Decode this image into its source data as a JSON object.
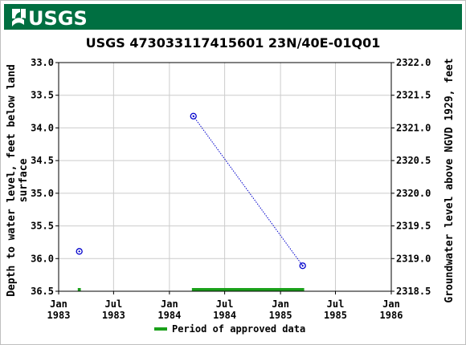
{
  "header": {
    "logo_text": "USGS",
    "bar_color": "#006f41"
  },
  "chart_data": {
    "type": "scatter",
    "title": "USGS 473033117415601 23N/40E-01Q01",
    "ylabel_left": "Depth to water level, feet below land surface",
    "ylabel_left_lines": [
      "Depth to water level, feet below land",
      "surface"
    ],
    "ylabel_right": "Groundwater level above NGVD 1929, feet",
    "x_ticks": [
      {
        "value": "1983-01-01",
        "line1": "Jan",
        "line2": "1983"
      },
      {
        "value": "1983-07-01",
        "line1": "Jul",
        "line2": "1983"
      },
      {
        "value": "1984-01-01",
        "line1": "Jan",
        "line2": "1984"
      },
      {
        "value": "1984-07-01",
        "line1": "Jul",
        "line2": "1984"
      },
      {
        "value": "1985-01-01",
        "line1": "Jan",
        "line2": "1985"
      },
      {
        "value": "1985-07-01",
        "line1": "Jul",
        "line2": "1985"
      },
      {
        "value": "1986-01-01",
        "line1": "Jan",
        "line2": "1986"
      }
    ],
    "xlim": [
      "1983-01-01",
      "1986-01-01"
    ],
    "ylim_left": [
      36.5,
      33.0
    ],
    "yticks_left": [
      "33.0",
      "33.5",
      "34.0",
      "34.5",
      "35.0",
      "35.5",
      "36.0",
      "36.5"
    ],
    "ylim_right": [
      2318.5,
      2322.0
    ],
    "yticks_right": [
      "2322.0",
      "2321.5",
      "2321.0",
      "2320.5",
      "2320.0",
      "2319.5",
      "2319.0",
      "2318.5"
    ],
    "grid": true,
    "series": [
      {
        "marker": "circle-open",
        "color": "#0000cc",
        "points": [
          {
            "x": "1983-03-10",
            "y": 35.89
          },
          {
            "x": "1984-03-20",
            "y": 33.82
          },
          {
            "x": "1985-03-15",
            "y": 36.11
          }
        ],
        "connected": [
          [
            1,
            2
          ]
        ],
        "line_style": "dotted"
      }
    ],
    "approved_periods": [
      {
        "start": "1983-03-05",
        "end": "1983-03-15"
      },
      {
        "start": "1984-03-15",
        "end": "1985-03-20"
      }
    ],
    "approved_color": "#1aa01a",
    "legend": {
      "label": "Period of approved data",
      "position": "bottom"
    }
  }
}
